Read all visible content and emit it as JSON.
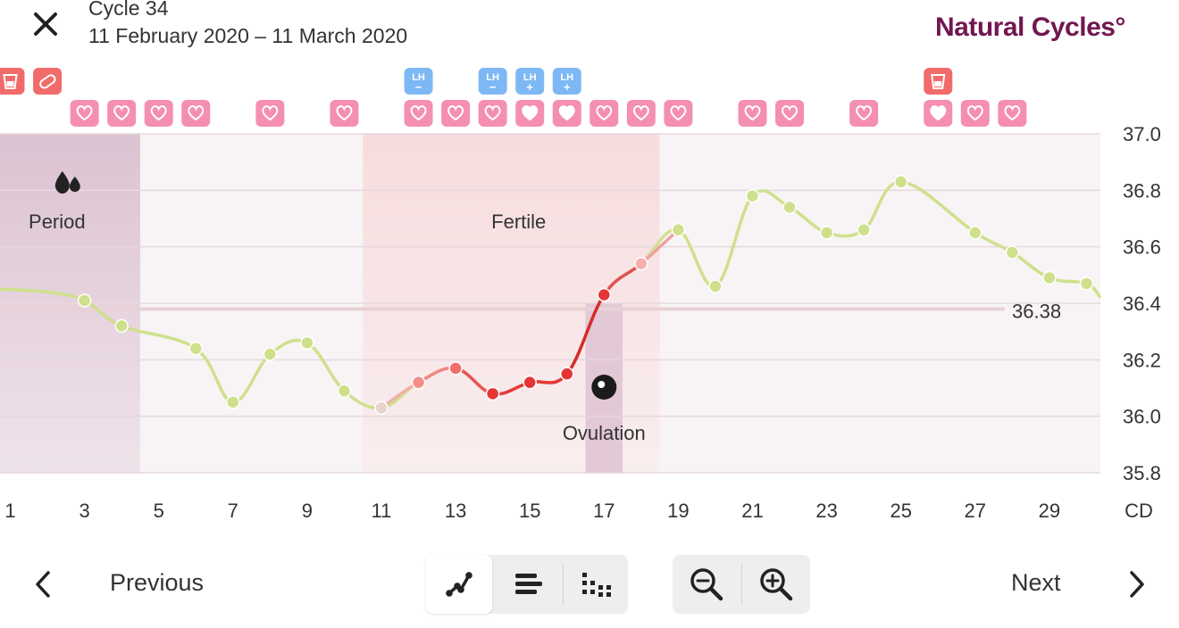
{
  "header": {
    "cycle_title": "Cycle 34",
    "date_range": "11 February 2020 – 11 March 2020",
    "brand": "Natural Cycles°"
  },
  "icons": {
    "close": "close-icon",
    "period": "drops-icon",
    "ovulation": "ovulation-egg-icon",
    "heart": "heart-icon",
    "test": "cup-test-icon",
    "pill": "pill-icon",
    "lh": "lh-test-icon"
  },
  "colors": {
    "temperature_line": "#cfe08c",
    "fertile_red": "#e53535",
    "brand": "#72174f",
    "heart_badge": "#f48fb1",
    "lh_badge": "#7db8f5",
    "test_badge": "#f26b6b"
  },
  "chart_data": {
    "type": "line",
    "xlabel": "CD",
    "x_ticks": [
      "1",
      "3",
      "5",
      "7",
      "9",
      "11",
      "13",
      "15",
      "17",
      "19",
      "21",
      "23",
      "25",
      "27",
      "29"
    ],
    "y_ticks": [
      "37.0",
      "36.8",
      "36.6",
      "36.4",
      "36.2",
      "36.0",
      "35.8"
    ],
    "ylim": [
      35.8,
      37.0
    ],
    "xlim": [
      1,
      30.5
    ],
    "grid": true,
    "series": [
      {
        "points": [
          {
            "x": 3,
            "y": 36.41
          },
          {
            "x": 4,
            "y": 36.32
          },
          {
            "x": 6,
            "y": 36.24
          },
          {
            "x": 7,
            "y": 36.05
          },
          {
            "x": 8,
            "y": 36.22
          },
          {
            "x": 9,
            "y": 36.26
          },
          {
            "x": 10,
            "y": 36.09
          },
          {
            "x": 11,
            "y": 36.03
          },
          {
            "x": 12,
            "y": 36.12
          },
          {
            "x": 13,
            "y": 36.17
          },
          {
            "x": 14,
            "y": 36.08
          },
          {
            "x": 15,
            "y": 36.12
          },
          {
            "x": 16,
            "y": 36.15
          },
          {
            "x": 17,
            "y": 36.43
          },
          {
            "x": 18,
            "y": 36.54
          },
          {
            "x": 19,
            "y": 36.66
          },
          {
            "x": 20,
            "y": 36.46
          },
          {
            "x": 21,
            "y": 36.78
          },
          {
            "x": 22,
            "y": 36.74
          },
          {
            "x": 23,
            "y": 36.65
          },
          {
            "x": 24,
            "y": 36.66
          },
          {
            "x": 25,
            "y": 36.83
          },
          {
            "x": 27,
            "y": 36.65
          },
          {
            "x": 28,
            "y": 36.58
          },
          {
            "x": 29,
            "y": 36.49
          },
          {
            "x": 30,
            "y": 36.47
          }
        ]
      }
    ],
    "coverline": {
      "value": 36.38,
      "label": "36.38"
    },
    "bands": [
      {
        "name": "period",
        "label": "Period",
        "from": 0.5,
        "to": 4.5
      },
      {
        "name": "fertile",
        "label": "Fertile",
        "from": 10.5,
        "to": 18.5
      },
      {
        "name": "ovulation",
        "label": "Ovulation",
        "from": 16.5,
        "to": 17.5
      }
    ],
    "markers": {
      "hearts": [
        3,
        4,
        5,
        6,
        8,
        10,
        12,
        13,
        14,
        15,
        16,
        17,
        18,
        19,
        21,
        22,
        24,
        26,
        27,
        28
      ],
      "filled_hearts": [
        15,
        16,
        26
      ],
      "lh_tests": [
        {
          "day": 12,
          "result": "−"
        },
        {
          "day": 14,
          "result": "−"
        },
        {
          "day": 15,
          "result": "+"
        },
        {
          "day": 16,
          "result": "+"
        }
      ],
      "tests": [
        1,
        26
      ],
      "pills": [
        2
      ]
    }
  },
  "controls": {
    "previous_label": "Previous",
    "next_label": "Next",
    "view_buttons": [
      "graph-view",
      "bar-view",
      "dot-view"
    ],
    "zoom_buttons": [
      "zoom-out",
      "zoom-in"
    ]
  }
}
